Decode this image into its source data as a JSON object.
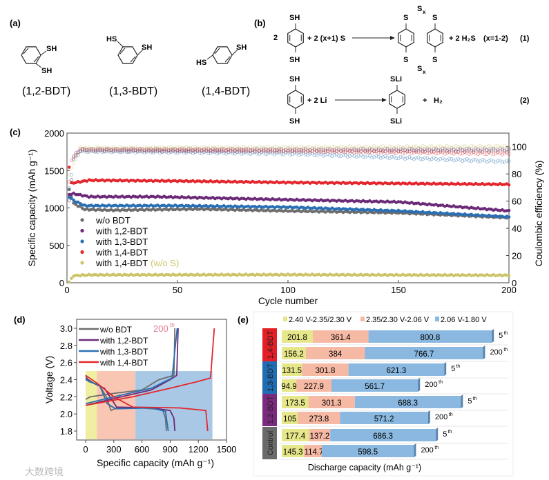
{
  "panel_a": {
    "label": "(a)",
    "structures": [
      {
        "name": "(1,2-BDT)",
        "groups": [
          "SH",
          "SH"
        ]
      },
      {
        "name": "(1,3-BDT)",
        "groups": [
          "HS",
          "SH"
        ]
      },
      {
        "name": "(1,4-BDT)",
        "groups": [
          "HS",
          "SH"
        ]
      }
    ]
  },
  "panel_b": {
    "label": "(b)",
    "eq1": {
      "coef": "2",
      "top": "SH",
      "bottom": "SH",
      "reagent": "+ 2 (x+1) S",
      "s": "S",
      "sx": "S",
      "x": "x",
      "product2": "+ 2 H₂S",
      "cond": "(x=1-2)",
      "num": "(1)"
    },
    "eq2": {
      "top": "SH",
      "bottom": "SH",
      "reagent": "+ 2 Li",
      "ptop": "SLi",
      "pbottom": "SLi",
      "product2": "+",
      "h2": "H₂",
      "num": "(2)"
    }
  },
  "chart_data": [
    {
      "id": "c",
      "label": "(c)",
      "type": "scatter",
      "xlabel": "Cycle number",
      "ylabel": "Specific capacity (mAh g⁻¹)",
      "y2label": "Coulombic efficiency (%)",
      "xlim": [
        0,
        200
      ],
      "ylim": [
        0,
        2000
      ],
      "y2lim": [
        0,
        110
      ],
      "xticks": [
        "0",
        "50",
        "100",
        "150",
        "200"
      ],
      "yticks": [
        "0",
        "500",
        "1000",
        "1500",
        "2000"
      ],
      "y2ticks": [
        "0",
        "20",
        "40",
        "60",
        "80",
        "100"
      ],
      "legend_position": "lower-left",
      "series": [
        {
          "name": "w/o BDT",
          "color": "#6d6d6d",
          "capacity": [
            [
              1,
              1240
            ],
            [
              3,
              1060
            ],
            [
              8,
              980
            ],
            [
              20,
              970
            ],
            [
              60,
              985
            ],
            [
              100,
              960
            ],
            [
              150,
              935
            ],
            [
              200,
              870
            ]
          ],
          "ce": [
            [
              1,
              60
            ],
            [
              3,
              92
            ],
            [
              6,
              97
            ],
            [
              200,
              97
            ]
          ]
        },
        {
          "name": "with 1,2-BDT",
          "color": "#6b2a78",
          "capacity": [
            [
              1,
              1180
            ],
            [
              3,
              1190
            ],
            [
              10,
              1150
            ],
            [
              40,
              1150
            ],
            [
              100,
              1110
            ],
            [
              150,
              1080
            ],
            [
              200,
              960
            ]
          ],
          "ce": [
            [
              1,
              60
            ],
            [
              3,
              93
            ],
            [
              6,
              98
            ],
            [
              200,
              98
            ]
          ]
        },
        {
          "name": "with 1,3-BDT",
          "color": "#2a6fb3",
          "capacity": [
            [
              1,
              1150
            ],
            [
              3,
              1100
            ],
            [
              8,
              1030
            ],
            [
              50,
              1030
            ],
            [
              100,
              1010
            ],
            [
              150,
              960
            ],
            [
              200,
              880
            ]
          ],
          "ce": [
            [
              1,
              70
            ],
            [
              3,
              90
            ],
            [
              6,
              97
            ],
            [
              100,
              95
            ],
            [
              150,
              92
            ],
            [
              200,
              89
            ]
          ]
        },
        {
          "name": "with 1,4-BDT",
          "color": "#e3262d",
          "capacity": [
            [
              1,
              1550
            ],
            [
              2,
              1330
            ],
            [
              10,
              1370
            ],
            [
              50,
              1360
            ],
            [
              100,
              1340
            ],
            [
              200,
              1315
            ]
          ],
          "ce": [
            [
              1,
              75
            ],
            [
              2,
              90
            ],
            [
              6,
              98
            ],
            [
              100,
              97
            ],
            [
              200,
              95
            ]
          ]
        },
        {
          "name": "with 1,4-BDT",
          "name_suffix": "(w/o S)",
          "color": "#cdc46a",
          "capacity": [
            [
              1,
              10
            ],
            [
              3,
              95
            ],
            [
              10,
              105
            ],
            [
              100,
              108
            ],
            [
              200,
              100
            ]
          ],
          "ce": [
            [
              1,
              80
            ],
            [
              6,
              99
            ],
            [
              200,
              100
            ]
          ]
        }
      ]
    },
    {
      "id": "d",
      "label": "(d)",
      "type": "line",
      "xlabel": "Specific capacity (mAh g⁻¹)",
      "ylabel": "Voltage (V)",
      "xlim": [
        -50,
        1500
      ],
      "ylim": [
        1.7,
        3.05
      ],
      "xticks": [
        "0",
        "300",
        "600",
        "900",
        "1200",
        "1500"
      ],
      "yticks": [
        "1.8",
        "2.0",
        "2.2",
        "2.4",
        "2.6",
        "2.8",
        "3.0"
      ],
      "annotation": "200",
      "annotation_sup": "th",
      "regions": [
        {
          "from": 0,
          "to": 120,
          "vmax": 2.5,
          "color": "#f0eea0"
        },
        {
          "from": 120,
          "to": 530,
          "vmax": 2.5,
          "color": "#f8c6b2"
        },
        {
          "from": 530,
          "to": 1350,
          "vmax": 2.5,
          "color": "#a9c8e6"
        }
      ],
      "legend_position": "top-left",
      "series": [
        {
          "name": "w/o  BDT",
          "color": "#6d6d6d",
          "discharge": [
            [
              0,
              2.45
            ],
            [
              30,
              2.38
            ],
            [
              150,
              2.33
            ],
            [
              220,
              2.2
            ],
            [
              270,
              2.04
            ],
            [
              330,
              2.07
            ],
            [
              600,
              2.07
            ],
            [
              820,
              2.05
            ],
            [
              850,
              1.95
            ],
            [
              860,
              1.8
            ]
          ],
          "charge": [
            [
              0,
              2.17
            ],
            [
              50,
              2.2
            ],
            [
              300,
              2.24
            ],
            [
              600,
              2.28
            ],
            [
              780,
              2.4
            ],
            [
              940,
              2.45
            ],
            [
              950,
              3.0
            ]
          ]
        },
        {
          "name": "with 1,2-BDT",
          "color": "#6b2a78",
          "discharge": [
            [
              0,
              2.42
            ],
            [
              100,
              2.35
            ],
            [
              200,
              2.3
            ],
            [
              330,
              2.08
            ],
            [
              700,
              2.07
            ],
            [
              900,
              2.04
            ],
            [
              940,
              1.95
            ],
            [
              950,
              1.8
            ]
          ],
          "charge": [
            [
              0,
              2.1
            ],
            [
              300,
              2.18
            ],
            [
              700,
              2.28
            ],
            [
              900,
              2.4
            ],
            [
              970,
              2.45
            ],
            [
              985,
              3.0
            ]
          ]
        },
        {
          "name": "with 1,3-BDT",
          "color": "#2a6fb3",
          "discharge": [
            [
              0,
              2.4
            ],
            [
              150,
              2.33
            ],
            [
              230,
              2.12
            ],
            [
              320,
              2.06
            ],
            [
              700,
              2.07
            ],
            [
              850,
              2.03
            ],
            [
              880,
              1.8
            ]
          ],
          "charge": [
            [
              0,
              2.12
            ],
            [
              300,
              2.2
            ],
            [
              700,
              2.3
            ],
            [
              920,
              2.42
            ],
            [
              975,
              3.0
            ]
          ]
        },
        {
          "name": "with 1,4-BDT",
          "color": "#e3262d",
          "discharge": [
            [
              0,
              2.45
            ],
            [
              120,
              2.36
            ],
            [
              300,
              2.2
            ],
            [
              500,
              2.08
            ],
            [
              1000,
              2.07
            ],
            [
              1280,
              2.04
            ],
            [
              1300,
              1.8
            ]
          ],
          "charge": [
            [
              0,
              2.1
            ],
            [
              500,
              2.2
            ],
            [
              900,
              2.3
            ],
            [
              1200,
              2.38
            ],
            [
              1330,
              2.42
            ],
            [
              1370,
              3.0
            ]
          ]
        }
      ]
    },
    {
      "id": "e",
      "label": "(e)",
      "type": "bar",
      "orientation": "horizontal-stacked",
      "xlabel": "Discharge capacity (mAh g⁻¹)",
      "legend": [
        {
          "name": "2.40 V-2.35/2.30 V",
          "color": "#e6e68a"
        },
        {
          "name": "2.35/2.30 V-2.06 V",
          "color": "#f6b9a4"
        },
        {
          "name": "2.06 V-1.80 V",
          "color": "#8ab8e0"
        }
      ],
      "groups": [
        {
          "name": "1,4-BDT",
          "color": "#e31e24",
          "bars": [
            {
              "cycle": "5",
              "sup": "th",
              "values": [
                201.8,
                361.4,
                800.8
              ]
            },
            {
              "cycle": "200",
              "sup": "th",
              "values": [
                156.2,
                384,
                766.7
              ]
            }
          ]
        },
        {
          "name": "1,3-BDT",
          "color": "#1f6db5",
          "bars": [
            {
              "cycle": "5",
              "sup": "th",
              "values": [
                131.5,
                301.8,
                621.3
              ]
            },
            {
              "cycle": "200",
              "sup": "th",
              "values": [
                94.9,
                227.9,
                561.7
              ]
            }
          ]
        },
        {
          "name": "1,2-BDT",
          "color": "#7b2a7e",
          "bars": [
            {
              "cycle": "5",
              "sup": "th",
              "values": [
                173.5,
                301.3,
                688.3
              ]
            },
            {
              "cycle": "200",
              "sup": "th",
              "values": [
                105,
                273.8,
                571.2
              ]
            }
          ]
        },
        {
          "name": "Control",
          "color": "#6a6a6a",
          "bars": [
            {
              "cycle": "5",
              "sup": "th",
              "values": [
                177.4,
                137.2,
                686.3
              ]
            },
            {
              "cycle": "200",
              "sup": "th",
              "values": [
                145.3,
                114.7,
                598.5
              ]
            }
          ]
        }
      ]
    }
  ],
  "watermark": "大数跨境"
}
